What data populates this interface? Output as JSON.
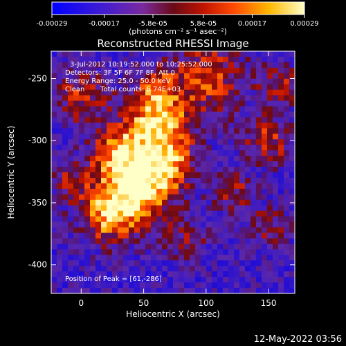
{
  "colorbar": {
    "tick_labels": [
      "-0.00029",
      "-0.00017",
      "-5.8e-05",
      "5.8e-05",
      "0.00017",
      "0.00029"
    ],
    "tick_values": [
      -0.00029,
      -0.00017,
      -5.8e-05,
      5.8e-05,
      0.00017,
      0.00029
    ],
    "unit_label": "(photons cm⁻² s⁻¹ asec⁻²)",
    "range": [
      -0.00029,
      0.00029
    ]
  },
  "chart_data": {
    "type": "heatmap",
    "title": "Reconstructed RHESSI Image",
    "xlabel": "Heliocentric X (arcsec)",
    "ylabel": "Heliocentric Y (arcsec)",
    "xlim": [
      -24,
      171
    ],
    "ylim": [
      -423,
      -228
    ],
    "x_ticks": [
      0,
      50,
      100,
      150
    ],
    "y_ticks": [
      -250,
      -300,
      -350,
      -400
    ],
    "annotations": [
      "3-Jul-2012 10:19:52.000 to 10:25:52.000",
      "Detectors: 3F 5F 6F 7F 8F, Att 0",
      "Energy Range: 25.0 - 50.0 keV",
      "Clean",
      "Total counts: 6.74E+03"
    ],
    "peak_label": "Position of Peak = [61,-286]",
    "peak": [
      61,
      -286
    ],
    "grid": false
  },
  "footer": {
    "timestamp": "12-May-2022 03:56"
  }
}
